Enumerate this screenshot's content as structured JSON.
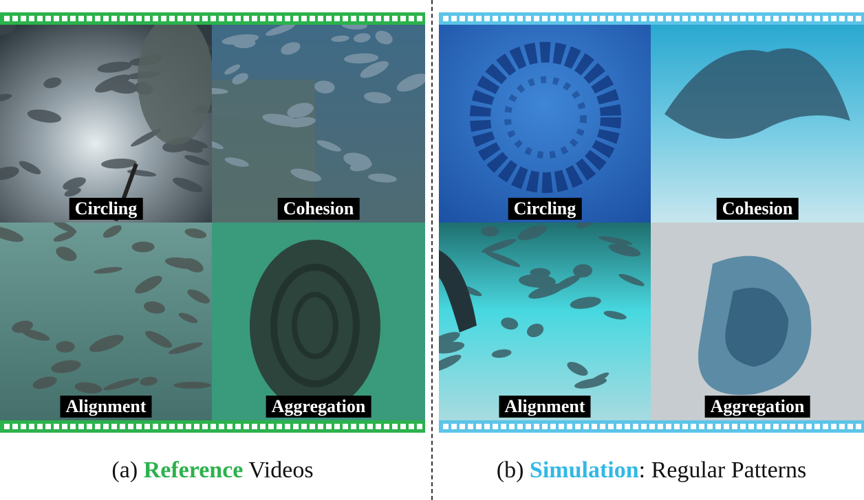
{
  "panels": {
    "reference": {
      "caption_prefix": "(a) ",
      "caption_keyword": "Reference",
      "caption_suffix": " Videos",
      "accent": "#2bb24c",
      "tiles": [
        "Circling",
        "Cohesion",
        "Alignment",
        "Aggregation"
      ]
    },
    "simulation": {
      "caption_prefix": "(b) ",
      "caption_keyword": "Simulation",
      "caption_suffix": ": Regular Patterns",
      "accent": "#5cc4e8",
      "keyword_color": "#33b8e6",
      "tiles": [
        "Circling",
        "Cohesion",
        "Alignment",
        "Aggregation"
      ]
    }
  }
}
